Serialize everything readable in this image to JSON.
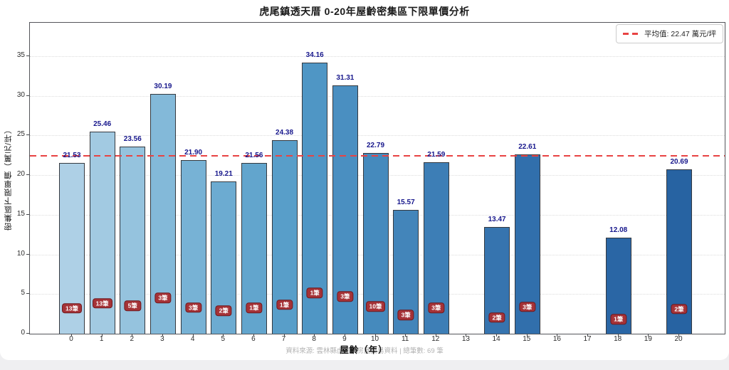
{
  "title": "虎尾鎮透天厝 0-20年屋齡密集區下限單價分析",
  "legend": {
    "label": "平均值: 22.47 萬元/坪",
    "line_color": "#e84343"
  },
  "footer": {
    "source": "資料來源: 雲林縣虎尾鎮房屋交易資料 | 總筆數: 69 筆"
  },
  "chart_data": {
    "type": "bar",
    "title": "虎尾鎮透天厝 0-20年屋齡密集區下限單價分析",
    "xlabel": "屋齡（年）",
    "ylabel": "密集區下限單價（萬元/坪）",
    "categories": [
      "0",
      "1",
      "2",
      "3",
      "4",
      "5",
      "6",
      "7",
      "8",
      "9",
      "10",
      "11",
      "12",
      "13",
      "14",
      "15",
      "16",
      "17",
      "18",
      "19",
      "20"
    ],
    "values": [
      21.53,
      25.46,
      23.56,
      30.19,
      21.9,
      19.21,
      21.56,
      24.38,
      34.16,
      31.31,
      22.79,
      15.57,
      21.59,
      null,
      13.47,
      22.61,
      null,
      null,
      12.08,
      null,
      20.69
    ],
    "value_labels": [
      "21.53",
      "25.46",
      "23.56",
      "30.19",
      "21.90",
      "19.21",
      "21.56",
      "24.38",
      "34.16",
      "31.31",
      "22.79",
      "15.57",
      "21.59",
      null,
      "13.47",
      "22.61",
      null,
      null,
      "12.08",
      null,
      "20.69"
    ],
    "counts": [
      "13筆",
      "13筆",
      "5筆",
      "3筆",
      "3筆",
      "2筆",
      "1筆",
      "1筆",
      "1筆",
      "3筆",
      "10筆",
      "3筆",
      "3筆",
      null,
      "2筆",
      "3筆",
      null,
      null,
      "1筆",
      null,
      "2筆"
    ],
    "bar_colors": [
      "#aed0e6",
      "#a2cae2",
      "#95c3de",
      "#83b9d9",
      "#77b2d5",
      "#6cabd1",
      "#62a5cd",
      "#589ec9",
      "#4f96c5",
      "#4a8fc1",
      "#458abd",
      "#4385ba",
      "#3d7eb6",
      null,
      "#3674af",
      "#316fac",
      null,
      null,
      "#2a66a5",
      null,
      "#2763a2"
    ],
    "mean_line": {
      "value": 22.47,
      "label": "平均值: 22.47 萬元/坪",
      "color": "#e84343",
      "style": "dashed"
    },
    "yticks": [
      0,
      5,
      10,
      15,
      20,
      25,
      30,
      35
    ],
    "ylim": [
      0,
      39.2
    ],
    "grid": "dotted-horizontal",
    "legend_position": "upper-right",
    "total_records": "69"
  }
}
